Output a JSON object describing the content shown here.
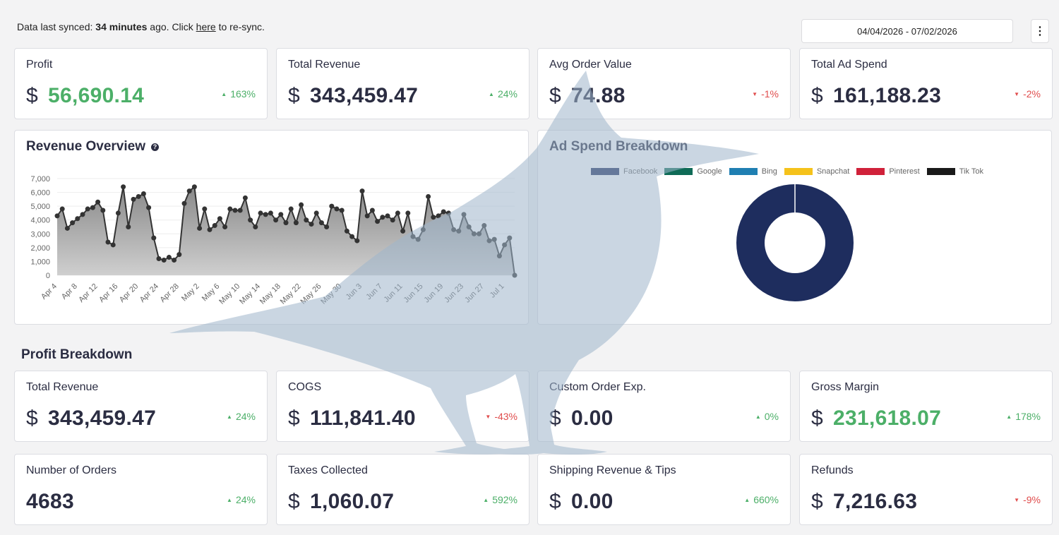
{
  "topbar": {
    "sync_prefix": "Data last synced: ",
    "sync_time": "34 minutes",
    "sync_mid": " ago. Click ",
    "sync_link": "here",
    "sync_suffix": " to re-sync."
  },
  "daterange": "04/04/2026 - 07/02/2026",
  "kebab_icon": "⋮",
  "kpis": [
    {
      "label": "Profit",
      "currency": "$",
      "value": "56,690.14",
      "delta": "163%",
      "dir": "up",
      "highlight": true
    },
    {
      "label": "Total Revenue",
      "currency": "$",
      "value": "343,459.47",
      "delta": "24%",
      "dir": "up",
      "highlight": false
    },
    {
      "label": "Avg Order Value",
      "currency": "$",
      "value": "74.88",
      "delta": "-1%",
      "dir": "down",
      "highlight": false
    },
    {
      "label": "Total Ad Spend",
      "currency": "$",
      "value": "161,188.23",
      "delta": "-2%",
      "dir": "down",
      "highlight": false
    }
  ],
  "revenue_panel": {
    "title": "Revenue Overview",
    "help_icon": "?"
  },
  "adspend_panel": {
    "title": "Ad Spend Breakdown",
    "legend": [
      {
        "name": "Facebook",
        "color": "#1e2d5e"
      },
      {
        "name": "Google",
        "color": "#0f6b57"
      },
      {
        "name": "Bing",
        "color": "#1f7fb2"
      },
      {
        "name": "Snapchat",
        "color": "#f5c21b"
      },
      {
        "name": "Pinterest",
        "color": "#d0213a"
      },
      {
        "name": "Tik Tok",
        "color": "#1a1a1a"
      }
    ]
  },
  "profit_breakdown": {
    "title": "Profit Breakdown",
    "row1": [
      {
        "label": "Total Revenue",
        "currency": "$",
        "value": "343,459.47",
        "delta": "24%",
        "dir": "up",
        "highlight": false
      },
      {
        "label": "COGS",
        "currency": "$",
        "value": "111,841.40",
        "delta": "-43%",
        "dir": "down",
        "highlight": false
      },
      {
        "label": "Custom Order Exp.",
        "currency": "$",
        "value": "0.00",
        "delta": "0%",
        "dir": "up",
        "highlight": false
      },
      {
        "label": "Gross Margin",
        "currency": "$",
        "value": "231,618.07",
        "delta": "178%",
        "dir": "up",
        "highlight": true
      }
    ],
    "row2": [
      {
        "label": "Number of Orders",
        "currency": "",
        "value": "4683",
        "delta": "24%",
        "dir": "up",
        "highlight": false
      },
      {
        "label": "Taxes Collected",
        "currency": "$",
        "value": "1,060.07",
        "delta": "592%",
        "dir": "up",
        "highlight": false
      },
      {
        "label": "Shipping Revenue & Tips",
        "currency": "$",
        "value": "0.00",
        "delta": "660%",
        "dir": "up",
        "highlight": false
      },
      {
        "label": "Refunds",
        "currency": "$",
        "value": "7,216.63",
        "delta": "-9%",
        "dir": "down",
        "highlight": false
      }
    ]
  },
  "colors": {
    "positive": "#4caf68",
    "negative": "#e04d4d",
    "facebook": "#1e2d5e",
    "area_fill": "#9a9a9a"
  },
  "chart_data": [
    {
      "type": "area",
      "title": "Revenue Overview",
      "ylim": [
        0,
        7000
      ],
      "yticks": [
        "0",
        "1,000",
        "2,000",
        "3,000",
        "4,000",
        "5,000",
        "6,000",
        "7,000"
      ],
      "xticks": [
        "Apr 4",
        "Apr 8",
        "Apr 12",
        "Apr 16",
        "Apr 20",
        "Apr 24",
        "Apr 28",
        "May 2",
        "May 6",
        "May 10",
        "May 14",
        "May 18",
        "May 22",
        "May 26",
        "May 30",
        "Jun 3",
        "Jun 7",
        "Jun 11",
        "Jun 15",
        "Jun 19",
        "Jun 23",
        "Jun 27",
        "Jul 1"
      ],
      "values": [
        4300,
        4800,
        3400,
        3800,
        4100,
        4400,
        4800,
        4900,
        5300,
        4700,
        2400,
        2200,
        4500,
        6400,
        3500,
        5500,
        5700,
        5900,
        4900,
        2700,
        1200,
        1100,
        1300,
        1100,
        1500,
        5200,
        6100,
        6400,
        3400,
        4800,
        3300,
        3600,
        4100,
        3500,
        4800,
        4700,
        4700,
        5600,
        4000,
        3500,
        4500,
        4400,
        4500,
        4000,
        4400,
        3800,
        4800,
        3800,
        5100,
        4000,
        3700,
        4500,
        3800,
        3500,
        5000,
        4800,
        4700,
        3200,
        2800,
        2500,
        6100,
        4300,
        4700,
        3900,
        4200,
        4300,
        4000,
        4500,
        3200,
        4500,
        2800,
        2600,
        3300,
        5700,
        4200,
        4300,
        4600,
        4500,
        3300,
        3200,
        4400,
        3500,
        3000,
        3000,
        3600,
        2500,
        2600,
        1400,
        2200,
        2700,
        0
      ]
    },
    {
      "type": "pie",
      "title": "Ad Spend Breakdown",
      "categories": [
        "Facebook",
        "Google",
        "Bing",
        "Snapchat",
        "Pinterest",
        "Tik Tok"
      ],
      "values": [
        100,
        0,
        0,
        0,
        0,
        0
      ]
    }
  ]
}
